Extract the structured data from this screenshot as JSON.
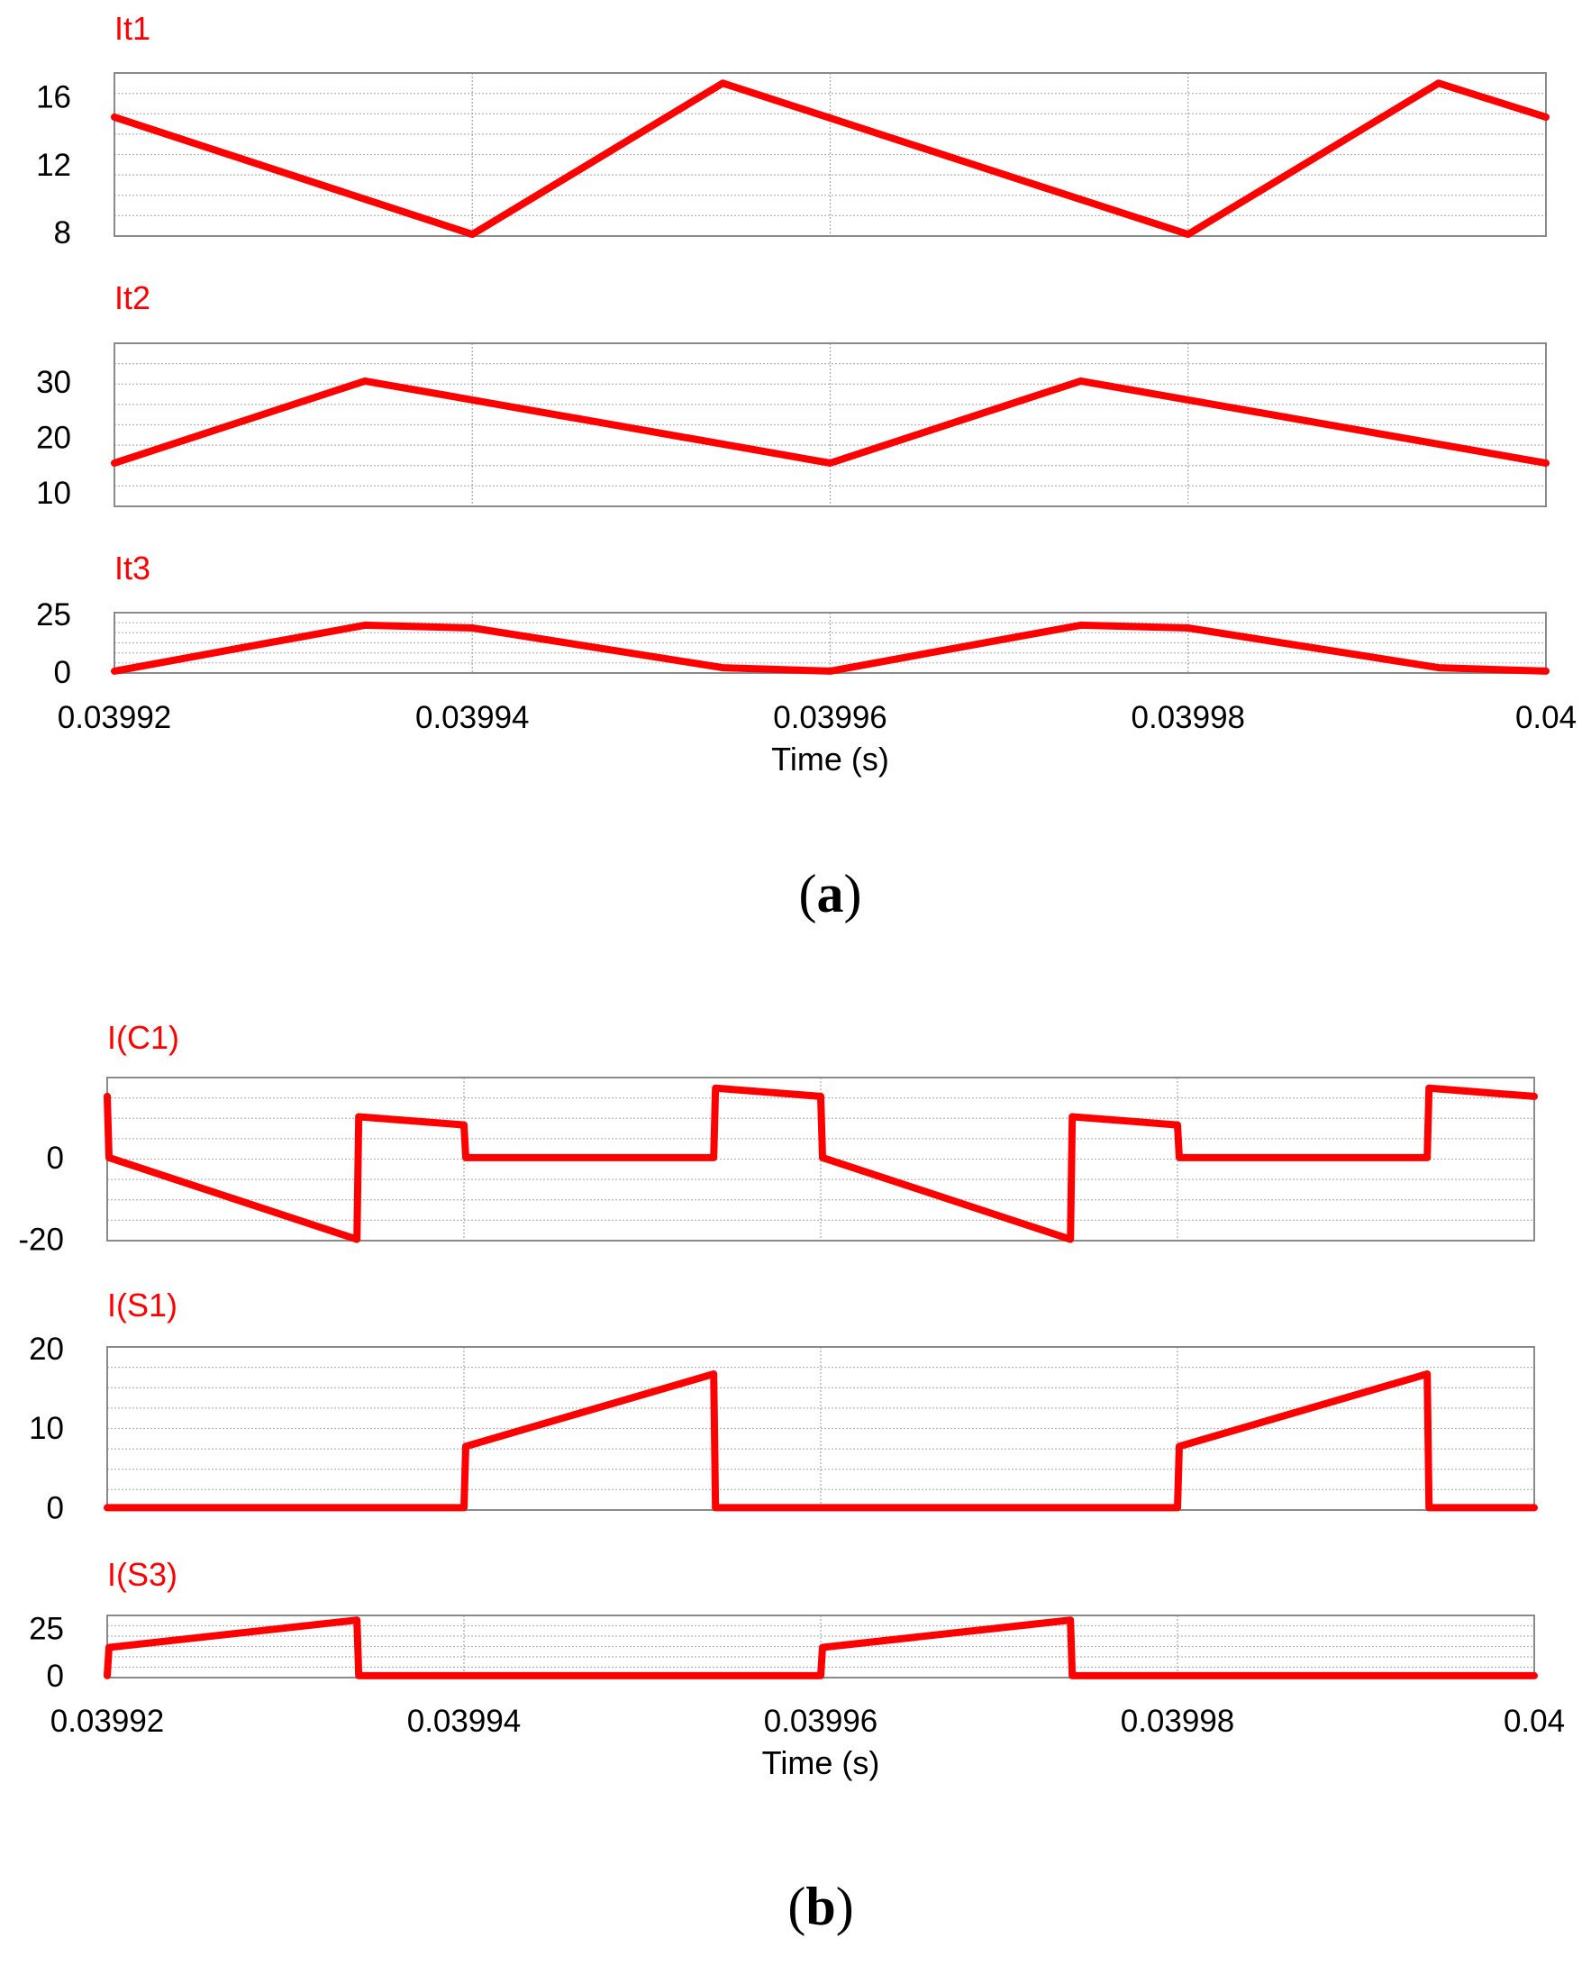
{
  "chart_data": [
    {
      "type": "line",
      "caption": "(a)",
      "xlabel": "Time (s)",
      "xlim": [
        0.03992,
        0.04
      ],
      "x_ticks": [
        "0.03992",
        "0.03994",
        "0.03996",
        "0.03998",
        "0.04"
      ],
      "trace_color": "#ff0000",
      "grid": true,
      "panels": [
        {
          "title": "It1",
          "ylim": [
            7.8,
            17.4
          ],
          "y_ticks": [
            {
              "label": "16",
              "value": 16
            },
            {
              "label": "12",
              "value": 12
            },
            {
              "label": "8",
              "value": 8
            }
          ],
          "x": [
            0.03992,
            0.03994,
            0.039954,
            0.03998,
            0.039994,
            0.04
          ],
          "y": [
            14.8,
            7.9,
            16.8,
            7.9,
            16.8,
            14.8
          ]
        },
        {
          "title": "It2",
          "ylim": [
            7.6,
            37.0
          ],
          "y_ticks": [
            {
              "label": "30",
              "value": 30
            },
            {
              "label": "20",
              "value": 20
            },
            {
              "label": "10",
              "value": 10
            }
          ],
          "x": [
            0.03992,
            0.039934,
            0.03996,
            0.039974,
            0.04
          ],
          "y": [
            15.4,
            30.2,
            15.4,
            30.2,
            15.4
          ]
        },
        {
          "title": "It3",
          "ylim": [
            -0.3,
            25.7
          ],
          "y_ticks": [
            {
              "label": "25",
              "value": 25
            },
            {
              "label": "0",
              "value": 0
            }
          ],
          "x": [
            0.03992,
            0.039934,
            0.03994,
            0.039954,
            0.03996,
            0.039974,
            0.03998,
            0.039994,
            0.04
          ],
          "y": [
            0.5,
            20.3,
            19.1,
            2.0,
            0.5,
            20.3,
            19.1,
            2.0,
            0.5
          ]
        }
      ]
    },
    {
      "type": "line",
      "caption": "(b)",
      "xlabel": "Time (s)",
      "xlim": [
        0.03992,
        0.04
      ],
      "x_ticks": [
        "0.03992",
        "0.03994",
        "0.03996",
        "0.03998",
        "0.04"
      ],
      "trace_color": "#ff0000",
      "grid": true,
      "panels": [
        {
          "title": "I(C1)",
          "ylim": [
            -20.3,
            19.6
          ],
          "y_ticks": [
            {
              "label": "0",
              "value": 0
            },
            {
              "label": "-20",
              "value": -20
            }
          ],
          "x": [
            0.03992,
            0.0399201,
            0.039934,
            0.0399341,
            0.03994,
            0.0399401,
            0.039954,
            0.0399541,
            0.03996,
            0.0399601,
            0.039974,
            0.0399741,
            0.03998,
            0.0399801,
            0.039994,
            0.0399941,
            0.04
          ],
          "y": [
            15.0,
            0.0,
            -20.0,
            10.0,
            8.0,
            0.0,
            0.0,
            17.0,
            15.0,
            0.0,
            -20.0,
            10.0,
            8.0,
            0.0,
            0.0,
            17.0,
            15.0
          ]
        },
        {
          "title": "I(S1)",
          "ylim": [
            -0.3,
            20.2
          ],
          "y_ticks": [
            {
              "label": "20",
              "value": 20
            },
            {
              "label": "10",
              "value": 10
            },
            {
              "label": "0",
              "value": 0
            }
          ],
          "x": [
            0.03992,
            0.03994,
            0.0399401,
            0.039954,
            0.0399541,
            0.03998,
            0.0399801,
            0.039994,
            0.0399941,
            0.04
          ],
          "y": [
            0,
            0,
            7.7,
            16.8,
            0,
            0,
            7.7,
            16.8,
            0,
            0
          ]
        },
        {
          "title": "I(S3)",
          "ylim": [
            -1.0,
            32.0
          ],
          "y_ticks": [
            {
              "label": "25",
              "value": 25
            },
            {
              "label": "0",
              "value": 0
            }
          ],
          "x": [
            0.03992,
            0.0399201,
            0.039934,
            0.0399341,
            0.03996,
            0.0399601,
            0.039974,
            0.0399741,
            0.04
          ],
          "y": [
            0,
            15.0,
            29.5,
            0,
            0,
            15.0,
            29.5,
            0,
            0
          ]
        }
      ]
    }
  ]
}
